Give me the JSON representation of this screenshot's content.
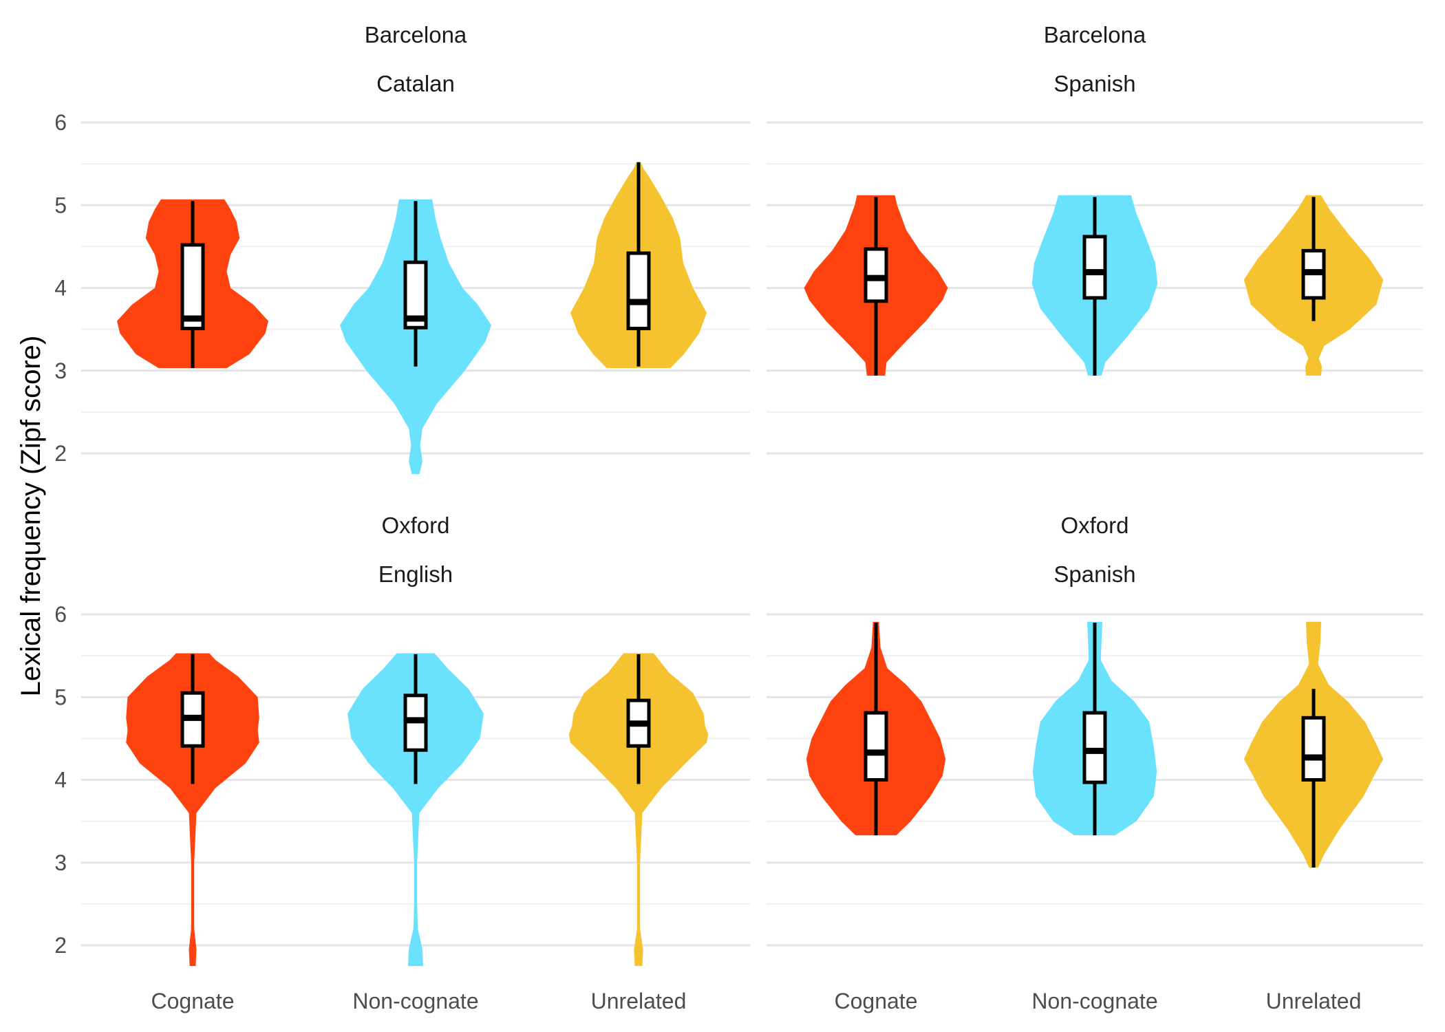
{
  "chart_data": {
    "type": "violin",
    "ylabel": "Lexical frequency (Zipf score)",
    "ylim": [
      1.65,
      6.1
    ],
    "y_ticks": [
      2,
      3,
      4,
      5,
      6
    ],
    "categories": [
      "Cognate",
      "Non-cognate",
      "Unrelated"
    ],
    "colors": {
      "Cognate": "#FF4310",
      "Non-cognate": "#6BE2FD",
      "Unrelated": "#F5C330"
    },
    "panels": [
      {
        "strip": [
          "Barcelona",
          "Catalan"
        ],
        "groups": [
          {
            "category": "Cognate",
            "box": {
              "min": 3.03,
              "q1": 3.51,
              "median": 3.63,
              "q3": 4.52,
              "max": 5.05
            },
            "violin": {
              "min": 3.03,
              "max": 5.07,
              "widths": [
                [
                  3.03,
                  0.45
                ],
                [
                  3.2,
                  0.75
                ],
                [
                  3.45,
                  0.96
                ],
                [
                  3.6,
                  1.0
                ],
                [
                  3.8,
                  0.8
                ],
                [
                  4.0,
                  0.5
                ],
                [
                  4.2,
                  0.45
                ],
                [
                  4.4,
                  0.5
                ],
                [
                  4.6,
                  0.62
                ],
                [
                  4.8,
                  0.58
                ],
                [
                  4.95,
                  0.5
                ],
                [
                  5.07,
                  0.42
                ]
              ]
            }
          },
          {
            "category": "Non-cognate",
            "box": {
              "min": 3.05,
              "q1": 3.52,
              "median": 3.63,
              "q3": 4.31,
              "max": 5.05
            },
            "violin": {
              "min": 1.75,
              "max": 5.07,
              "widths": [
                [
                  1.75,
                  0.05
                ],
                [
                  1.9,
                  0.09
                ],
                [
                  2.1,
                  0.06
                ],
                [
                  2.3,
                  0.09
                ],
                [
                  2.6,
                  0.28
                ],
                [
                  3.0,
                  0.65
                ],
                [
                  3.35,
                  0.92
                ],
                [
                  3.55,
                  1.0
                ],
                [
                  3.8,
                  0.82
                ],
                [
                  4.0,
                  0.62
                ],
                [
                  4.3,
                  0.44
                ],
                [
                  4.6,
                  0.33
                ],
                [
                  4.85,
                  0.26
                ],
                [
                  5.07,
                  0.22
                ]
              ]
            }
          },
          {
            "category": "Unrelated",
            "box": {
              "min": 3.05,
              "q1": 3.51,
              "median": 3.83,
              "q3": 4.42,
              "max": 5.52
            },
            "violin": {
              "min": 3.03,
              "max": 5.52,
              "widths": [
                [
                  3.03,
                  0.42
                ],
                [
                  3.2,
                  0.6
                ],
                [
                  3.45,
                  0.8
                ],
                [
                  3.7,
                  0.9
                ],
                [
                  4.0,
                  0.72
                ],
                [
                  4.3,
                  0.59
                ],
                [
                  4.6,
                  0.55
                ],
                [
                  4.85,
                  0.45
                ],
                [
                  5.1,
                  0.3
                ],
                [
                  5.3,
                  0.17
                ],
                [
                  5.45,
                  0.06
                ],
                [
                  5.52,
                  0.03
                ]
              ]
            }
          }
        ]
      },
      {
        "strip": [
          "Barcelona",
          "Spanish"
        ],
        "groups": [
          {
            "category": "Cognate",
            "box": {
              "min": 2.94,
              "q1": 3.84,
              "median": 4.12,
              "q3": 4.47,
              "max": 5.1
            },
            "violin": {
              "min": 2.94,
              "max": 5.12,
              "widths": [
                [
                  2.94,
                  0.12
                ],
                [
                  3.1,
                  0.14
                ],
                [
                  3.3,
                  0.34
                ],
                [
                  3.6,
                  0.66
                ],
                [
                  3.85,
                  0.88
                ],
                [
                  4.0,
                  0.95
                ],
                [
                  4.2,
                  0.82
                ],
                [
                  4.45,
                  0.58
                ],
                [
                  4.7,
                  0.4
                ],
                [
                  5.0,
                  0.28
                ],
                [
                  5.12,
                  0.25
                ]
              ]
            }
          },
          {
            "category": "Non-cognate",
            "box": {
              "min": 2.94,
              "q1": 3.88,
              "median": 4.19,
              "q3": 4.62,
              "max": 5.1
            },
            "violin": {
              "min": 2.94,
              "max": 5.12,
              "widths": [
                [
                  2.94,
                  0.09
                ],
                [
                  3.1,
                  0.14
                ],
                [
                  3.4,
                  0.42
                ],
                [
                  3.75,
                  0.72
                ],
                [
                  4.05,
                  0.83
                ],
                [
                  4.3,
                  0.8
                ],
                [
                  4.6,
                  0.68
                ],
                [
                  4.9,
                  0.55
                ],
                [
                  5.12,
                  0.48
                ]
              ]
            }
          },
          {
            "category": "Unrelated",
            "box": {
              "min": 3.6,
              "q1": 3.88,
              "median": 4.19,
              "q3": 4.45,
              "max": 5.1
            },
            "violin": {
              "min": 2.94,
              "max": 5.12,
              "widths": [
                [
                  2.94,
                  0.1
                ],
                [
                  3.05,
                  0.11
                ],
                [
                  3.15,
                  0.07
                ],
                [
                  3.3,
                  0.14
                ],
                [
                  3.5,
                  0.48
                ],
                [
                  3.8,
                  0.83
                ],
                [
                  4.1,
                  0.92
                ],
                [
                  4.35,
                  0.74
                ],
                [
                  4.65,
                  0.46
                ],
                [
                  4.95,
                  0.21
                ],
                [
                  5.12,
                  0.1
                ]
              ]
            }
          }
        ]
      },
      {
        "strip": [
          "Oxford",
          "English"
        ],
        "groups": [
          {
            "category": "Cognate",
            "box": {
              "min": 3.95,
              "q1": 4.41,
              "median": 4.75,
              "q3": 5.05,
              "max": 5.52
            },
            "violin": {
              "min": 1.75,
              "max": 5.53,
              "widths": [
                [
                  1.75,
                  0.04
                ],
                [
                  1.95,
                  0.05
                ],
                [
                  2.2,
                  0.02
                ],
                [
                  2.5,
                  0.02
                ],
                [
                  3.0,
                  0.02
                ],
                [
                  3.6,
                  0.05
                ],
                [
                  3.9,
                  0.3
                ],
                [
                  4.2,
                  0.7
                ],
                [
                  4.45,
                  0.88
                ],
                [
                  4.6,
                  0.86
                ],
                [
                  4.75,
                  0.88
                ],
                [
                  5.0,
                  0.86
                ],
                [
                  5.25,
                  0.6
                ],
                [
                  5.45,
                  0.3
                ],
                [
                  5.53,
                  0.22
                ]
              ]
            }
          },
          {
            "category": "Non-cognate",
            "box": {
              "min": 3.95,
              "q1": 4.36,
              "median": 4.72,
              "q3": 5.02,
              "max": 5.52
            },
            "violin": {
              "min": 1.75,
              "max": 5.53,
              "widths": [
                [
                  1.75,
                  0.1
                ],
                [
                  1.95,
                  0.09
                ],
                [
                  2.2,
                  0.03
                ],
                [
                  2.5,
                  0.02
                ],
                [
                  3.0,
                  0.02
                ],
                [
                  3.6,
                  0.05
                ],
                [
                  3.9,
                  0.3
                ],
                [
                  4.2,
                  0.62
                ],
                [
                  4.5,
                  0.85
                ],
                [
                  4.8,
                  0.9
                ],
                [
                  5.1,
                  0.7
                ],
                [
                  5.35,
                  0.42
                ],
                [
                  5.53,
                  0.25
                ]
              ]
            }
          },
          {
            "category": "Unrelated",
            "box": {
              "min": 3.95,
              "q1": 4.41,
              "median": 4.68,
              "q3": 4.96,
              "max": 5.52
            },
            "violin": {
              "min": 1.75,
              "max": 5.53,
              "widths": [
                [
                  1.75,
                  0.05
                ],
                [
                  1.95,
                  0.06
                ],
                [
                  2.2,
                  0.02
                ],
                [
                  2.5,
                  0.02
                ],
                [
                  3.0,
                  0.02
                ],
                [
                  3.6,
                  0.05
                ],
                [
                  3.9,
                  0.3
                ],
                [
                  4.2,
                  0.62
                ],
                [
                  4.45,
                  0.9
                ],
                [
                  4.55,
                  0.92
                ],
                [
                  4.65,
                  0.88
                ],
                [
                  4.8,
                  0.86
                ],
                [
                  5.05,
                  0.72
                ],
                [
                  5.3,
                  0.4
                ],
                [
                  5.53,
                  0.2
                ]
              ]
            }
          }
        ]
      },
      {
        "strip": [
          "Oxford",
          "Spanish"
        ],
        "groups": [
          {
            "category": "Cognate",
            "box": {
              "min": 3.33,
              "q1": 4.0,
              "median": 4.33,
              "q3": 4.81,
              "max": 5.9
            },
            "violin": {
              "min": 3.33,
              "max": 5.91,
              "widths": [
                [
                  3.33,
                  0.27
                ],
                [
                  3.5,
                  0.46
                ],
                [
                  3.8,
                  0.72
                ],
                [
                  4.05,
                  0.88
                ],
                [
                  4.25,
                  0.92
                ],
                [
                  4.5,
                  0.85
                ],
                [
                  4.7,
                  0.74
                ],
                [
                  4.95,
                  0.6
                ],
                [
                  5.15,
                  0.4
                ],
                [
                  5.35,
                  0.15
                ],
                [
                  5.6,
                  0.06
                ],
                [
                  5.91,
                  0.04
                ]
              ]
            }
          },
          {
            "category": "Non-cognate",
            "box": {
              "min": 3.33,
              "q1": 3.97,
              "median": 4.35,
              "q3": 4.81,
              "max": 5.9
            },
            "violin": {
              "min": 3.33,
              "max": 5.91,
              "widths": [
                [
                  3.33,
                  0.27
                ],
                [
                  3.5,
                  0.55
                ],
                [
                  3.8,
                  0.78
                ],
                [
                  4.1,
                  0.82
                ],
                [
                  4.4,
                  0.78
                ],
                [
                  4.7,
                  0.72
                ],
                [
                  4.95,
                  0.52
                ],
                [
                  5.2,
                  0.22
                ],
                [
                  5.45,
                  0.08
                ],
                [
                  5.7,
                  0.09
                ],
                [
                  5.91,
                  0.1
                ]
              ]
            }
          },
          {
            "category": "Unrelated",
            "box": {
              "min": 2.94,
              "q1": 4.0,
              "median": 4.27,
              "q3": 4.75,
              "max": 5.1
            },
            "violin": {
              "min": 2.94,
              "max": 5.91,
              "widths": [
                [
                  2.94,
                  0.06
                ],
                [
                  3.1,
                  0.14
                ],
                [
                  3.4,
                  0.34
                ],
                [
                  3.8,
                  0.66
                ],
                [
                  4.05,
                  0.8
                ],
                [
                  4.25,
                  0.92
                ],
                [
                  4.45,
                  0.82
                ],
                [
                  4.7,
                  0.68
                ],
                [
                  4.95,
                  0.45
                ],
                [
                  5.15,
                  0.2
                ],
                [
                  5.4,
                  0.06
                ],
                [
                  5.65,
                  0.09
                ],
                [
                  5.91,
                  0.1
                ]
              ]
            }
          }
        ]
      }
    ]
  }
}
